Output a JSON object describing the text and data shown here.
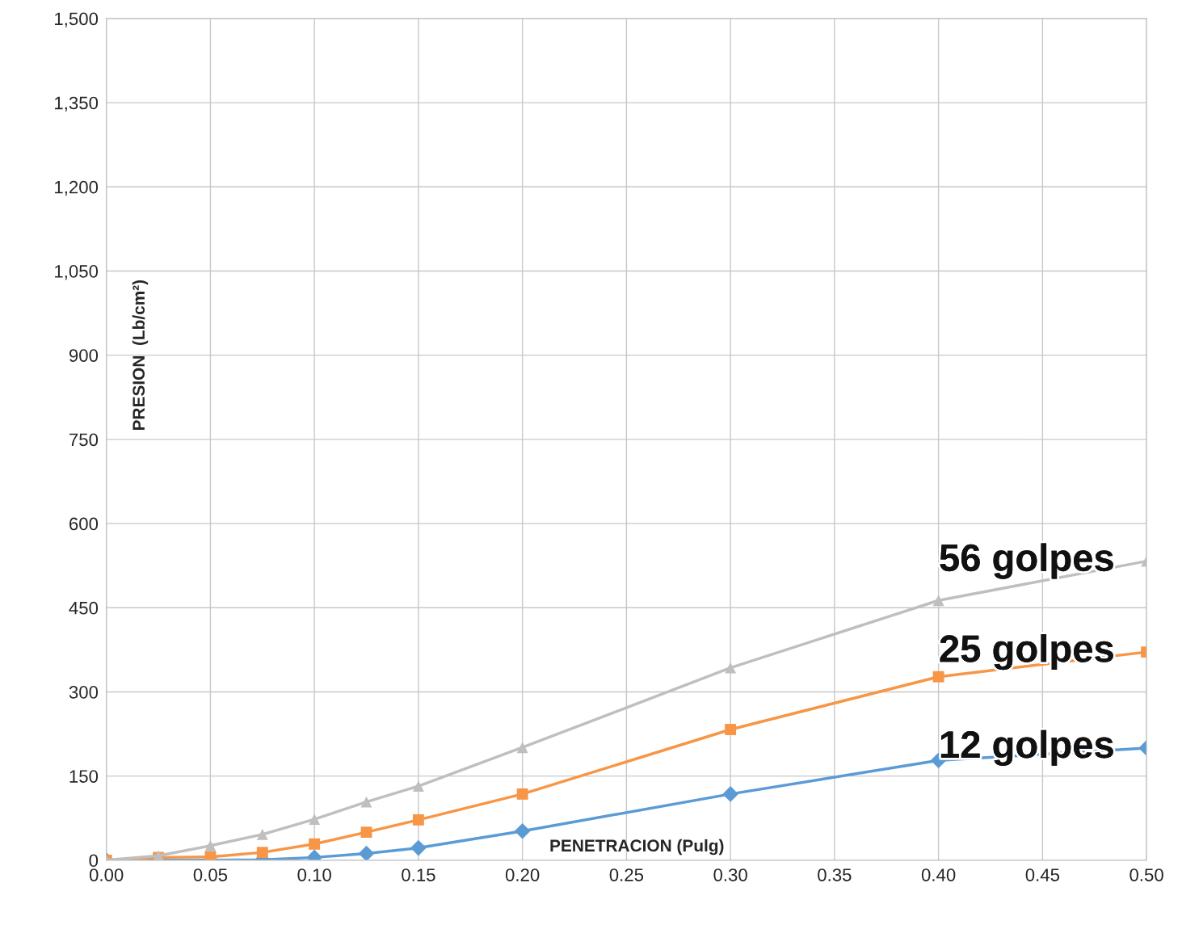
{
  "chart_data": {
    "type": "line",
    "xlabel": "PENETRACION (Pulg)",
    "ylabel": "PRESION  (Lb/cm²)",
    "x": [
      0,
      0.025,
      0.05,
      0.075,
      0.1,
      0.125,
      0.15,
      0.2,
      0.3,
      0.4,
      0.5
    ],
    "series": [
      {
        "name": "12 golpes",
        "color": "#5b9bd5",
        "marker": "diamond",
        "values": [
          0,
          0,
          0,
          1,
          5,
          12,
          22,
          52,
          118,
          178,
          200
        ]
      },
      {
        "name": "25 golpes",
        "color": "#f79646",
        "marker": "square",
        "values": [
          0,
          5,
          6,
          14,
          29,
          50,
          72,
          118,
          233,
          327,
          371
        ]
      },
      {
        "name": "56 golpes",
        "color": "#bfbfbf",
        "marker": "triangle",
        "values": [
          0,
          8,
          26,
          46,
          73,
          104,
          132,
          201,
          343,
          463,
          533
        ]
      }
    ],
    "xlim": [
      0,
      0.5
    ],
    "ylim": [
      0,
      1500
    ],
    "xticks": [
      {
        "value": 0,
        "label": "0.00"
      },
      0.05,
      {
        "value": 0.1,
        "label": "0.10"
      },
      0.15,
      {
        "value": 0.2,
        "label": "0.20"
      },
      0.25,
      {
        "value": 0.3,
        "label": "0.30"
      },
      0.35,
      {
        "value": 0.4,
        "label": "0.40"
      },
      0.45,
      {
        "value": 0.5,
        "label": "0.50"
      }
    ],
    "yticks": [
      0,
      150,
      300,
      450,
      600,
      750,
      900,
      {
        "value": 1050,
        "label": "1,050"
      },
      {
        "value": 1200,
        "label": "1,200"
      },
      {
        "value": 1350,
        "label": "1,350"
      },
      {
        "value": 1500,
        "label": "1,500"
      }
    ],
    "grid": true,
    "legend": false
  }
}
